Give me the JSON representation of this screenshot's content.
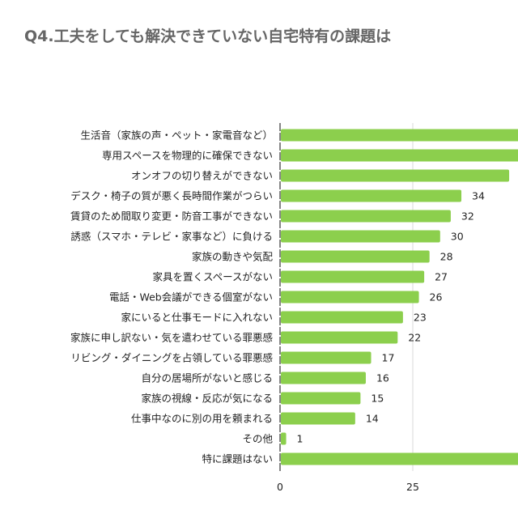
{
  "chart_data": {
    "type": "bar",
    "orientation": "horizontal",
    "title": "Q4.工夫をしても解決できていない自宅特有の課題は",
    "categories": [
      "生活音（家族の声・ペット・家電音など）",
      "専用スペースを物理的に確保できない",
      "オンオフの切り替えができない",
      "デスク・椅子の質が悪く長時間作業がつらい",
      "賃貸のため間取り変更・防音工事ができない",
      "誘惑（スマホ・テレビ・家事など）に負ける",
      "家族の動きや気配",
      "家具を置くスペースがない",
      "電話・Web会議ができる個室がない",
      "家にいると仕事モードに入れない",
      "家族に申し訳ない・気を遣わせている罪悪感",
      "リビング・ダイニングを占領している罪悪感",
      "自分の居場所がないと感じる",
      "家族の視線・反応が気になる",
      "仕事中なのに別の用を頼まれる",
      "その他",
      "特に課題はない"
    ],
    "values": [
      null,
      null,
      43,
      34,
      32,
      30,
      28,
      27,
      26,
      23,
      22,
      17,
      16,
      15,
      14,
      1,
      null
    ],
    "data_labels": [
      "",
      "",
      "",
      "34",
      "32",
      "30",
      "28",
      "27",
      "26",
      "23",
      "22",
      "17",
      "16",
      "15",
      "14",
      "1",
      ""
    ],
    "xticks": [
      "0",
      "25"
    ],
    "xlim": [
      0,
      45
    ],
    "grid": true,
    "bar_color": "#8ccf4d",
    "grid_color": "#d9d9d9"
  }
}
